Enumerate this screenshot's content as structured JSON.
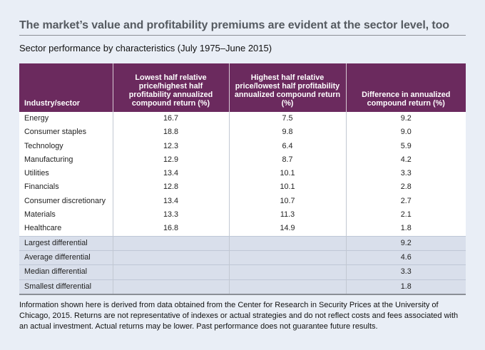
{
  "title": "The market’s value and profitability premiums are evident at the sector level, too",
  "subtitle": "Sector performance by characteristics (July 1975–June 2015)",
  "table": {
    "headers": [
      "Industry/sector",
      "Lowest half relative price/highest half profitability annualized compound return (%)",
      "Highest half relative price/lowest half profitability annualized compound return (%)",
      "Difference in annualized compound return (%)"
    ],
    "rows": [
      [
        "Energy",
        "16.7",
        "7.5",
        "9.2"
      ],
      [
        "Consumer staples",
        "18.8",
        "9.8",
        "9.0"
      ],
      [
        "Technology",
        "12.3",
        "6.4",
        "5.9"
      ],
      [
        "Manufacturing",
        "12.9",
        "8.7",
        "4.2"
      ],
      [
        "Utilities",
        "13.4",
        "10.1",
        "3.3"
      ],
      [
        "Financials",
        "12.8",
        "10.1",
        "2.8"
      ],
      [
        "Consumer discretionary",
        "13.4",
        "10.7",
        "2.7"
      ],
      [
        "Materials",
        "13.3",
        "11.3",
        "2.1"
      ],
      [
        "Healthcare",
        "16.8",
        "14.9",
        "1.8"
      ]
    ],
    "summary_rows": [
      [
        "Largest differential",
        "",
        "",
        "9.2"
      ],
      [
        "Average differential",
        "",
        "",
        "4.6"
      ],
      [
        "Median differential",
        "",
        "",
        "3.3"
      ],
      [
        "Smallest differential",
        "",
        "",
        "1.8"
      ]
    ]
  },
  "footnote": "Information shown here is derived from data obtained from the Center for Research in Security Prices at the University of Chicago, 2015. Returns are not representative of indexes or actual strategies and do not reflect costs and fees associated with an actual investment. Actual returns may be lower. Past performance does not guarantee future results.",
  "colors": {
    "header_bg": "#6b2a5e",
    "page_bg": "#e9eef6",
    "summary_bg": "#d9dfeb",
    "title_text": "#555a60"
  }
}
